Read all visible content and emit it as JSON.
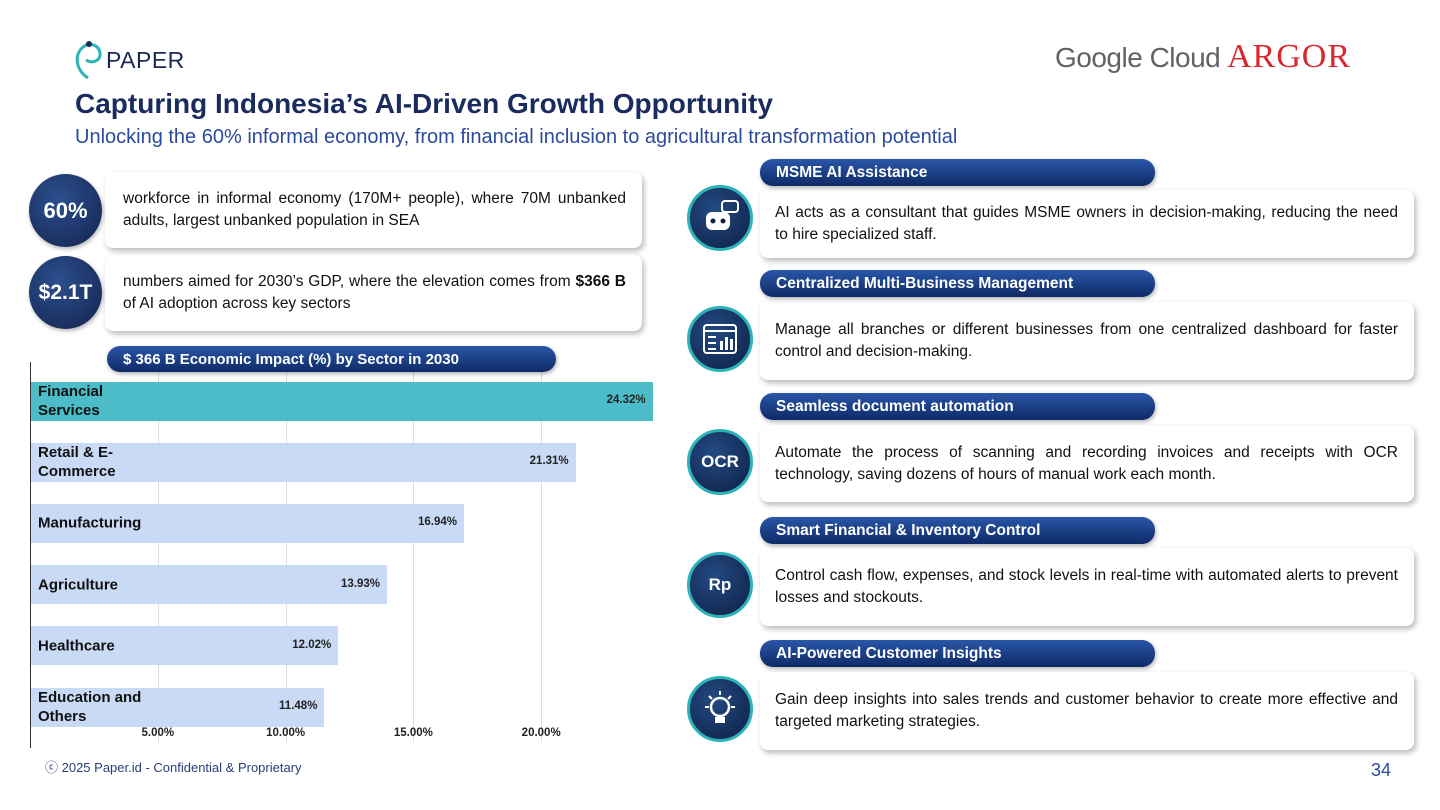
{
  "header": {
    "logo": "PAPER",
    "partner_1": "Google Cloud",
    "partner_2": "ARGOR",
    "title": "Capturing Indonesia’s AI-Driven Growth Opportunity",
    "subtitle": "Unlocking the 60% informal economy, from financial inclusion to agricultural transformation potential"
  },
  "stats": [
    {
      "badge": "60%",
      "text": "workforce in informal economy (170M+ people), where 70M unbanked adults, largest unbanked population in SEA"
    },
    {
      "badge": "$2.1T",
      "text_before": "numbers aimed for 2030’s GDP, where the elevation comes from ",
      "text_bold": "$366 B",
      "text_after": " of AI adoption across key sectors"
    }
  ],
  "chart_data": {
    "type": "hbar",
    "title": "$ 366 B Economic Impact (%) by Sector in 2030",
    "categories": [
      "Financial Services",
      "Retail & E-Commerce",
      "Manufacturing",
      "Agriculture",
      "Healthcare",
      "Education and Others"
    ],
    "values": [
      24.32,
      21.31,
      16.94,
      13.93,
      12.02,
      11.48
    ],
    "value_labels": [
      "24.32%",
      "21.31%",
      "16.94%",
      "13.93%",
      "12.02%",
      "11.48%"
    ],
    "colors": [
      "#4bbcc8",
      "#c9daf6",
      "#c9daf6",
      "#c9daf6",
      "#c9daf6",
      "#c9daf6"
    ],
    "xlim": [
      0,
      25
    ],
    "xticks": [
      {
        "value": 5,
        "label": "5.00%"
      },
      {
        "value": 10,
        "label": "10.00%"
      },
      {
        "value": 15,
        "label": "15.00%"
      },
      {
        "value": 20,
        "label": "20.00%"
      }
    ],
    "grid": true
  },
  "features": [
    {
      "heading": "MSME AI Assistance",
      "text": "AI acts as a consultant that guides MSME owners in decision-making, reducing the need to hire specialized staff."
    },
    {
      "heading": "Centralized Multi-Business Management",
      "text": "Manage all branches or different businesses from one centralized dashboard for faster control and decision-making."
    },
    {
      "heading": "Seamless document automation",
      "text": "Automate the process of scanning and recording invoices and receipts with OCR technology, saving dozens of hours of manual work each month.",
      "icon_text": "OCR"
    },
    {
      "heading": "Smart Financial & Inventory Control",
      "text": "Control cash flow, expenses, and stock levels in real-time with automated alerts to prevent losses and stockouts.",
      "icon_text": "Rp"
    },
    {
      "heading": "AI-Powered Customer Insights",
      "text": "Gain deep insights into sales trends and customer behavior to create more effective and targeted marketing strategies."
    }
  ],
  "footer": {
    "copyright": "ⓒ 2025 Paper.id - Confidential & Proprietary",
    "page": "34"
  }
}
